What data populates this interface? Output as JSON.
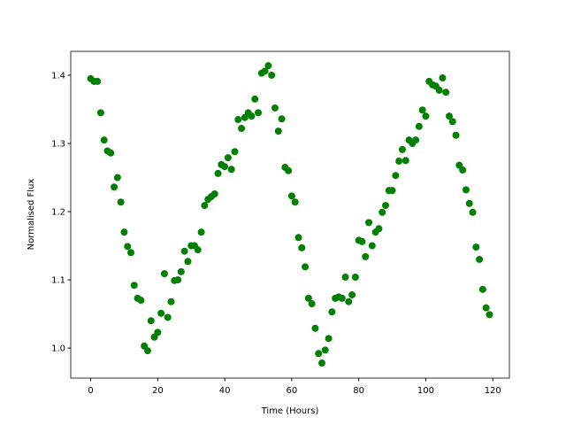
{
  "chart_data": {
    "type": "scatter",
    "xlabel": "Time (Hours)",
    "ylabel": "Normalised Flux",
    "color": "#008000",
    "x": [
      0,
      1,
      2,
      3,
      4,
      5,
      6,
      7,
      8,
      9,
      10,
      11,
      12,
      13,
      14,
      15,
      16,
      17,
      18,
      19,
      20,
      21,
      22,
      23,
      24,
      25,
      26,
      27,
      28,
      29,
      30,
      31,
      32,
      33,
      34,
      35,
      36,
      37,
      38,
      39,
      40,
      41,
      42,
      43,
      44,
      45,
      46,
      47,
      48,
      49,
      50,
      51,
      52,
      53,
      54,
      55,
      56,
      57,
      58,
      59,
      60,
      61,
      62,
      63,
      64,
      65,
      66,
      67,
      68,
      69,
      70,
      71,
      72,
      73,
      74,
      75,
      76,
      77,
      78,
      79,
      80,
      81,
      82,
      83,
      84,
      85,
      86,
      87,
      88,
      89,
      90,
      91,
      92,
      93,
      94,
      95,
      96,
      97,
      98,
      99,
      100,
      101,
      102,
      103,
      104,
      105,
      106,
      107,
      108,
      109,
      110,
      111,
      112,
      113,
      114,
      115,
      116,
      117,
      118,
      119
    ],
    "values": [
      1.395,
      1.391,
      1.391,
      1.345,
      1.305,
      1.289,
      1.286,
      1.236,
      1.25,
      1.214,
      1.17,
      1.149,
      1.14,
      1.092,
      1.073,
      1.07,
      1.003,
      0.996,
      1.04,
      1.016,
      1.023,
      1.051,
      1.109,
      1.045,
      1.068,
      1.099,
      1.1,
      1.112,
      1.142,
      1.127,
      1.15,
      1.15,
      1.144,
      1.17,
      1.209,
      1.218,
      1.222,
      1.226,
      1.256,
      1.269,
      1.266,
      1.279,
      1.262,
      1.288,
      1.335,
      1.322,
      1.338,
      1.345,
      1.34,
      1.365,
      1.345,
      1.403,
      1.406,
      1.414,
      1.4,
      1.352,
      1.318,
      1.336,
      1.265,
      1.26,
      1.223,
      1.214,
      1.162,
      1.147,
      1.119,
      1.073,
      1.065,
      1.029,
      0.992,
      0.978,
      0.997,
      1.014,
      1.053,
      1.073,
      1.075,
      1.073,
      1.104,
      1.068,
      1.078,
      1.104,
      1.158,
      1.156,
      1.134,
      1.184,
      1.15,
      1.17,
      1.175,
      1.199,
      1.209,
      1.231,
      1.231,
      1.253,
      1.274,
      1.291,
      1.275,
      1.305,
      1.3,
      1.305,
      1.325,
      1.349,
      1.34,
      1.391,
      1.386,
      1.384,
      1.378,
      1.396,
      1.375,
      1.34,
      1.332,
      1.312,
      1.268,
      1.261,
      1.232,
      1.212,
      1.199,
      1.148,
      1.13,
      1.086,
      1.059,
      1.049
    ],
    "xlim": [
      -5.95,
      124.95
    ],
    "xticks": [
      0,
      20,
      40,
      60,
      80,
      100,
      120
    ],
    "ylim": [
      0.956,
      1.435
    ],
    "yticks": [
      {
        "value": 1,
        "label": "1.0"
      },
      1.1,
      1.2,
      1.3,
      1.4
    ]
  }
}
